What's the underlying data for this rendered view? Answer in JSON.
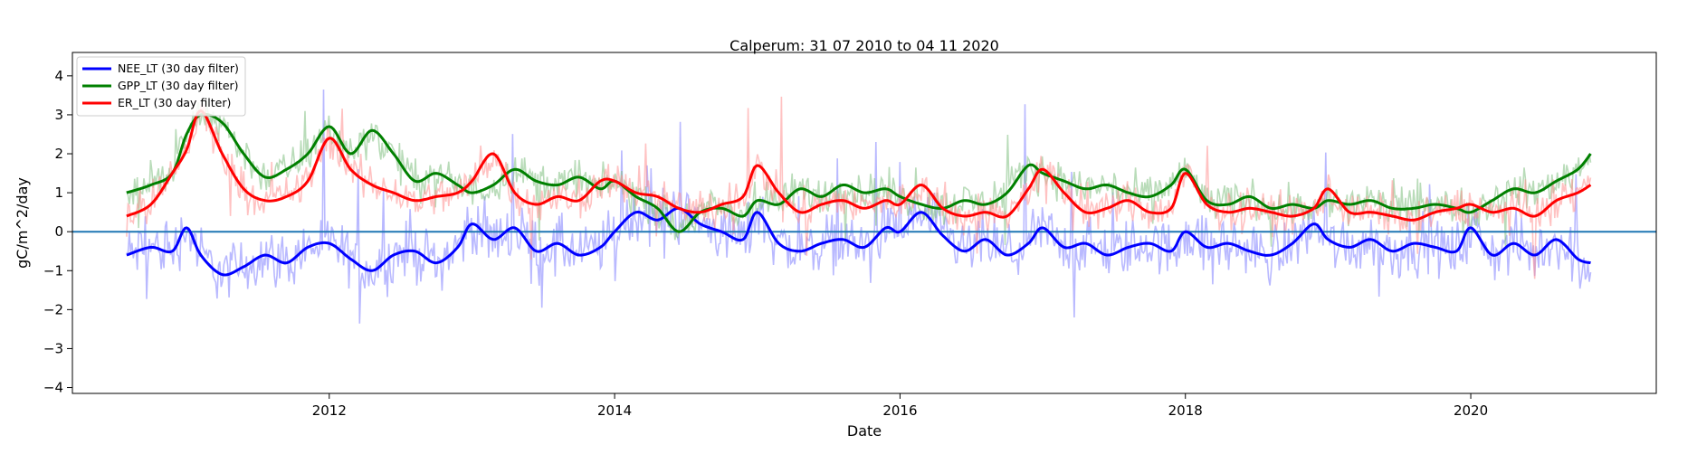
{
  "chart_data": {
    "type": "line",
    "title": "Calperum: 31 07 2010 to 04 11 2020",
    "xlabel": "Date",
    "ylabel": "gC/m^2/day",
    "xlim": [
      2010.2,
      2021.3
    ],
    "ylim": [
      -4.15,
      4.6
    ],
    "xticks": [
      2012,
      2014,
      2016,
      2018,
      2020
    ],
    "xtick_labels": [
      "2012",
      "2014",
      "2016",
      "2018",
      "2020"
    ],
    "yticks": [
      -4,
      -3,
      -2,
      -1,
      0,
      1,
      2,
      3,
      4
    ],
    "ytick_labels": [
      "−4",
      "−3",
      "−2",
      "−1",
      "0",
      "1",
      "2",
      "3",
      "4"
    ],
    "grid": false,
    "legend_position": "top-left",
    "zero_line": {
      "y": 0,
      "color": "#1f77b4"
    },
    "series": [
      {
        "name": "NEE_LT (30 day filter)",
        "color": "#0000ff",
        "raw_color": "#8080ff",
        "x": [
          2010.58,
          2010.75,
          2010.9,
          2011.0,
          2011.1,
          2011.25,
          2011.4,
          2011.55,
          2011.7,
          2011.85,
          2012.0,
          2012.15,
          2012.3,
          2012.45,
          2012.6,
          2012.75,
          2012.9,
          2013.0,
          2013.15,
          2013.3,
          2013.45,
          2013.6,
          2013.75,
          2013.9,
          2014.0,
          2014.15,
          2014.3,
          2014.45,
          2014.6,
          2014.75,
          2014.9,
          2015.0,
          2015.15,
          2015.3,
          2015.45,
          2015.6,
          2015.75,
          2015.9,
          2016.0,
          2016.15,
          2016.3,
          2016.45,
          2016.6,
          2016.75,
          2016.9,
          2017.0,
          2017.15,
          2017.3,
          2017.45,
          2017.6,
          2017.75,
          2017.9,
          2018.0,
          2018.15,
          2018.3,
          2018.45,
          2018.6,
          2018.75,
          2018.9,
          2019.0,
          2019.15,
          2019.3,
          2019.45,
          2019.6,
          2019.75,
          2019.9,
          2020.0,
          2020.15,
          2020.3,
          2020.45,
          2020.6,
          2020.75,
          2020.84
        ],
        "y": [
          -0.6,
          -0.4,
          -0.5,
          0.1,
          -0.6,
          -1.1,
          -0.9,
          -0.6,
          -0.8,
          -0.4,
          -0.3,
          -0.7,
          -1.0,
          -0.6,
          -0.5,
          -0.8,
          -0.4,
          0.2,
          -0.2,
          0.1,
          -0.5,
          -0.3,
          -0.6,
          -0.4,
          0.0,
          0.5,
          0.3,
          0.6,
          0.2,
          0.0,
          -0.2,
          0.5,
          -0.3,
          -0.5,
          -0.3,
          -0.2,
          -0.4,
          0.1,
          0.0,
          0.5,
          -0.1,
          -0.5,
          -0.2,
          -0.6,
          -0.3,
          0.1,
          -0.4,
          -0.3,
          -0.6,
          -0.4,
          -0.3,
          -0.5,
          0.0,
          -0.4,
          -0.3,
          -0.5,
          -0.6,
          -0.3,
          0.2,
          -0.2,
          -0.4,
          -0.2,
          -0.5,
          -0.3,
          -0.4,
          -0.5,
          0.1,
          -0.6,
          -0.3,
          -0.6,
          -0.2,
          -0.7,
          -0.8
        ]
      },
      {
        "name": "GPP_LT (30 day filter)",
        "color": "#008000",
        "raw_color": "#80c080",
        "x": [
          2010.58,
          2010.75,
          2010.9,
          2011.0,
          2011.1,
          2011.25,
          2011.4,
          2011.55,
          2011.7,
          2011.85,
          2012.0,
          2012.15,
          2012.3,
          2012.45,
          2012.6,
          2012.75,
          2012.9,
          2013.0,
          2013.15,
          2013.3,
          2013.45,
          2013.6,
          2013.75,
          2013.9,
          2014.0,
          2014.15,
          2014.3,
          2014.45,
          2014.6,
          2014.75,
          2014.9,
          2015.0,
          2015.15,
          2015.3,
          2015.45,
          2015.6,
          2015.75,
          2015.9,
          2016.0,
          2016.15,
          2016.3,
          2016.45,
          2016.6,
          2016.75,
          2016.9,
          2017.0,
          2017.15,
          2017.3,
          2017.45,
          2017.6,
          2017.75,
          2017.9,
          2018.0,
          2018.15,
          2018.3,
          2018.45,
          2018.6,
          2018.75,
          2018.9,
          2019.0,
          2019.15,
          2019.3,
          2019.45,
          2019.6,
          2019.75,
          2019.9,
          2020.0,
          2020.15,
          2020.3,
          2020.45,
          2020.6,
          2020.75,
          2020.84
        ],
        "y": [
          1.0,
          1.2,
          1.5,
          2.5,
          3.0,
          2.8,
          2.0,
          1.4,
          1.6,
          2.0,
          2.7,
          2.0,
          2.6,
          2.0,
          1.3,
          1.5,
          1.2,
          1.0,
          1.2,
          1.6,
          1.3,
          1.2,
          1.4,
          1.1,
          1.3,
          0.9,
          0.6,
          0.0,
          0.5,
          0.6,
          0.4,
          0.8,
          0.7,
          1.1,
          0.9,
          1.2,
          1.0,
          1.1,
          0.9,
          0.7,
          0.6,
          0.8,
          0.7,
          1.0,
          1.7,
          1.5,
          1.3,
          1.1,
          1.2,
          1.0,
          0.9,
          1.2,
          1.6,
          0.8,
          0.7,
          0.9,
          0.6,
          0.7,
          0.6,
          0.8,
          0.7,
          0.8,
          0.6,
          0.6,
          0.7,
          0.6,
          0.5,
          0.8,
          1.1,
          1.0,
          1.3,
          1.6,
          2.0
        ]
      },
      {
        "name": "ER_LT (30 day filter)",
        "color": "#ff0000",
        "raw_color": "#ff9090",
        "x": [
          2010.58,
          2010.75,
          2010.9,
          2011.0,
          2011.1,
          2011.25,
          2011.4,
          2011.55,
          2011.7,
          2011.85,
          2012.0,
          2012.15,
          2012.3,
          2012.45,
          2012.6,
          2012.75,
          2012.9,
          2013.0,
          2013.15,
          2013.3,
          2013.45,
          2013.6,
          2013.75,
          2013.9,
          2014.0,
          2014.15,
          2014.3,
          2014.45,
          2014.6,
          2014.75,
          2014.9,
          2015.0,
          2015.15,
          2015.3,
          2015.45,
          2015.6,
          2015.75,
          2015.9,
          2016.0,
          2016.15,
          2016.3,
          2016.45,
          2016.6,
          2016.75,
          2016.9,
          2017.0,
          2017.15,
          2017.3,
          2017.45,
          2017.6,
          2017.75,
          2017.9,
          2018.0,
          2018.15,
          2018.3,
          2018.45,
          2018.6,
          2018.75,
          2018.9,
          2019.0,
          2019.15,
          2019.3,
          2019.45,
          2019.6,
          2019.75,
          2019.9,
          2020.0,
          2020.15,
          2020.3,
          2020.45,
          2020.6,
          2020.75,
          2020.84
        ],
        "y": [
          0.4,
          0.7,
          1.5,
          2.1,
          3.1,
          2.0,
          1.1,
          0.8,
          0.9,
          1.3,
          2.4,
          1.6,
          1.2,
          1.0,
          0.8,
          0.9,
          1.0,
          1.3,
          2.0,
          1.0,
          0.7,
          0.9,
          0.8,
          1.3,
          1.3,
          1.0,
          0.9,
          0.6,
          0.5,
          0.7,
          0.9,
          1.7,
          1.0,
          0.5,
          0.7,
          0.8,
          0.6,
          0.8,
          0.7,
          1.2,
          0.6,
          0.4,
          0.5,
          0.4,
          1.1,
          1.6,
          1.0,
          0.5,
          0.6,
          0.8,
          0.5,
          0.6,
          1.5,
          0.7,
          0.5,
          0.6,
          0.5,
          0.4,
          0.6,
          1.1,
          0.5,
          0.5,
          0.4,
          0.3,
          0.5,
          0.6,
          0.7,
          0.5,
          0.6,
          0.4,
          0.8,
          1.0,
          1.2
        ]
      }
    ]
  }
}
